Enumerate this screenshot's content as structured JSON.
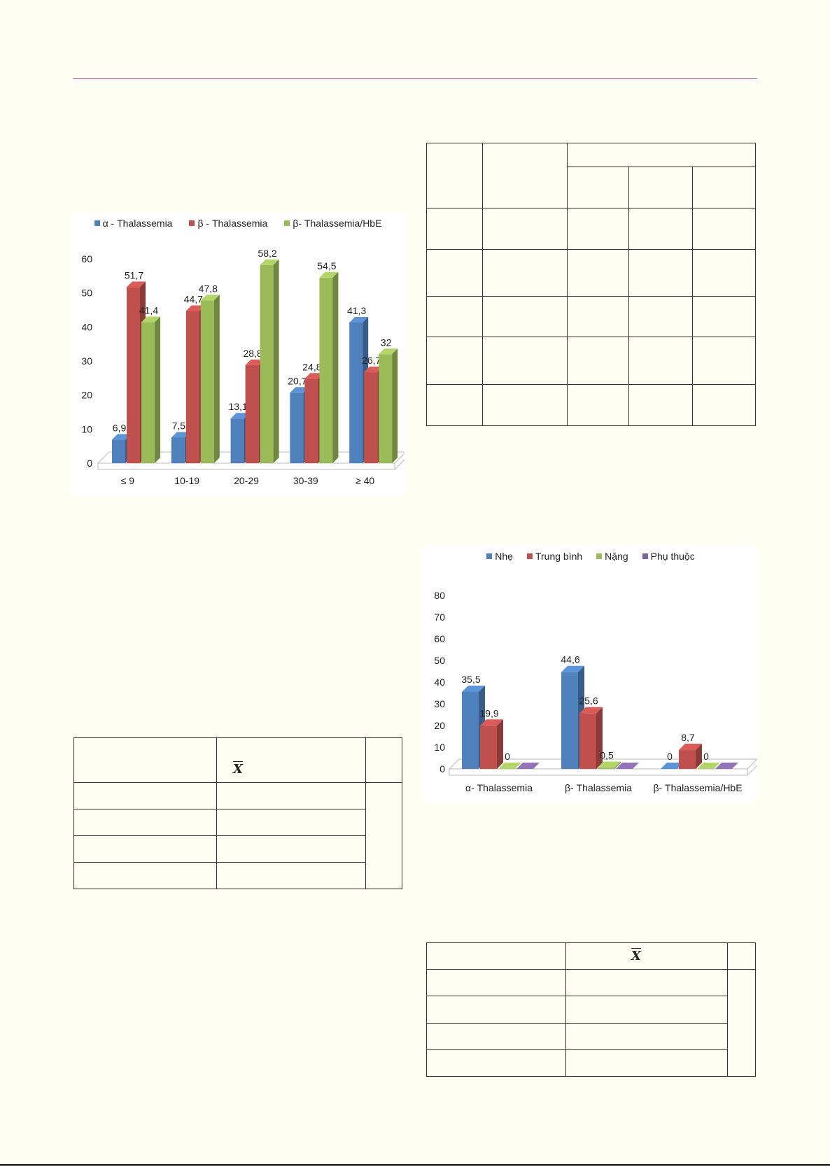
{
  "chart_data": [
    {
      "type": "bar",
      "categories": [
        "≤ 9",
        "10-19",
        "20-29",
        "30-39",
        "≥ 40"
      ],
      "series": [
        {
          "name": "α - Thalassemia",
          "values": [
            6.9,
            7.5,
            13.1,
            20.7,
            41.3
          ],
          "labels": [
            "6,9",
            "7,5",
            "13,1",
            "20,7",
            "41,3"
          ]
        },
        {
          "name": "β - Thalassemia",
          "values": [
            51.7,
            44.7,
            28.8,
            24.8,
            26.7
          ],
          "labels": [
            "51,7",
            "44,7",
            "28,8",
            "24,8",
            "26,7"
          ]
        },
        {
          "name": "β- Thalassemia/HbE",
          "values": [
            41.4,
            47.8,
            58.2,
            54.5,
            32
          ],
          "labels": [
            "41,4",
            "47,8",
            "58,2",
            "54,5",
            "32"
          ]
        }
      ],
      "ylim": [
        0,
        60
      ],
      "yticks": [
        "0",
        "10",
        "20",
        "30",
        "40",
        "50",
        "60"
      ],
      "colors": [
        "#4f81bd",
        "#c0504d",
        "#9bbb59"
      ],
      "legend": "top"
    },
    {
      "type": "bar",
      "categories": [
        "α- Thalassemia",
        "β- Thalassemia",
        "β- Thalassemia/HbE"
      ],
      "series": [
        {
          "name": "Nhẹ",
          "values": [
            35.5,
            44.6,
            0
          ],
          "labels": [
            "35,5",
            "44,6",
            "0"
          ]
        },
        {
          "name": "Trung bình",
          "values": [
            19.9,
            25.6,
            8.7
          ],
          "labels": [
            "19,9",
            "25,6",
            "8,7"
          ]
        },
        {
          "name": "Nặng",
          "values": [
            0,
            0.5,
            0
          ],
          "labels": [
            "0",
            "0,5",
            "0"
          ]
        },
        {
          "name": "Phụ thuộc",
          "values": [
            0,
            0,
            0
          ],
          "labels": [
            "",
            "",
            ""
          ]
        }
      ],
      "ylim": [
        0,
        80
      ],
      "yticks": [
        "0",
        "10",
        "20",
        "30",
        "40",
        "50",
        "60",
        "70",
        "80"
      ],
      "colors": [
        "#4f81bd",
        "#c0504d",
        "#9bbb59",
        "#8064a2"
      ],
      "legend": "top"
    }
  ],
  "tables": {
    "xbar_symbol": "X"
  }
}
